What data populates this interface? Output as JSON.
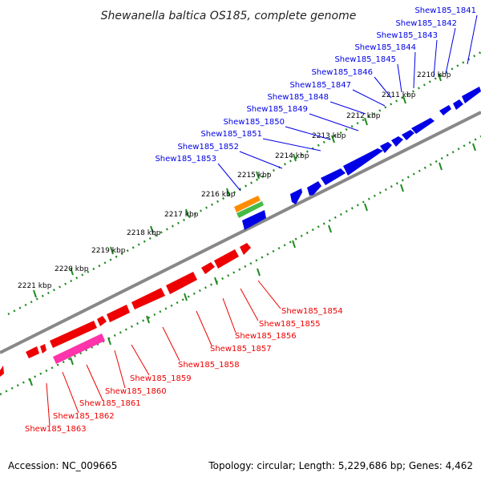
{
  "title": "Shewanella baltica OS185, complete genome",
  "footer": {
    "accession": "Accession: NC_009665",
    "summary": "Topology: circular; Length: 5,229,686 bp; Genes: 4,462"
  },
  "colors": {
    "forward_gene": "#0000e6",
    "reverse_gene": "#ee0000",
    "pink_feature": "#ff33aa",
    "orange_feature": "#ff8c00",
    "green_feature": "#44bb44",
    "backbone": "#888888",
    "tick": "#228b22"
  },
  "kbp_labels": [
    "2210 kbp",
    "2211 kbp",
    "2212 kbp",
    "2213 kbp",
    "2214 kbp",
    "2215 kbp",
    "2216 kbp",
    "2217 kbp",
    "2218 kbp",
    "2219 kbp",
    "2220 kbp",
    "2221 kbp"
  ],
  "forward_genes": [
    "Shew185_1841",
    "Shew185_1842",
    "Shew185_1843",
    "Shew185_1844",
    "Shew185_1845",
    "Shew185_1846",
    "Shew185_1847",
    "Shew185_1848",
    "Shew185_1849",
    "Shew185_1850",
    "Shew185_1851",
    "Shew185_1852",
    "Shew185_1853"
  ],
  "reverse_genes": [
    "Shew185_1854",
    "Shew185_1855",
    "Shew185_1856",
    "Shew185_1857",
    "Shew185_1858",
    "Shew185_1859",
    "Shew185_1860",
    "Shew185_1861",
    "Shew185_1862",
    "Shew185_1863"
  ]
}
